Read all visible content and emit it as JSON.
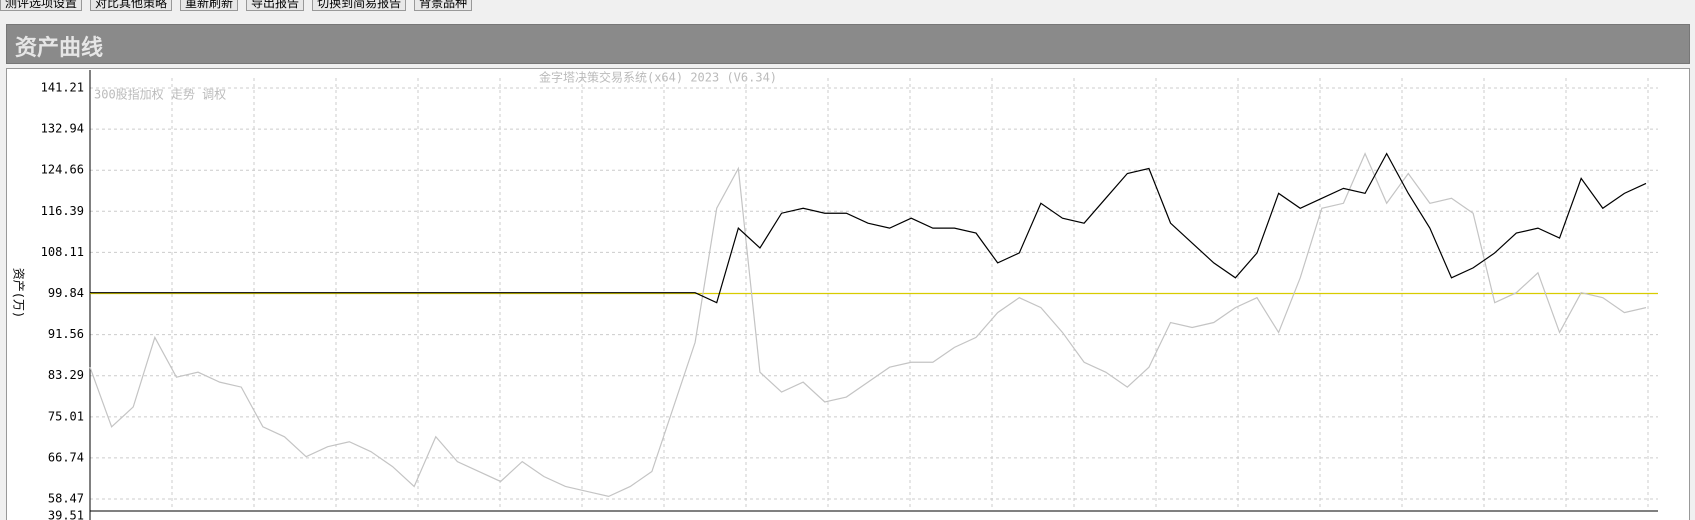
{
  "toolbar": {
    "buttons": [
      "测评选项设置",
      "对比其他策略",
      "重新刷新",
      "导出报告",
      "切换到简易报告",
      "背景品种"
    ]
  },
  "header": {
    "title": "资产曲线"
  },
  "chart_data": {
    "type": "line",
    "title": "金字塔决策交易系统(x64) 2023 (V6.34)",
    "legend_text": "300股指加权 走势 调权",
    "ylabel": "资产(万)",
    "y_min_label": "39.51",
    "ylim": [
      56.46,
      143.22
    ],
    "yticks": [
      141.21,
      132.94,
      124.66,
      116.39,
      108.11,
      99.84,
      91.56,
      83.29,
      75.01,
      66.74,
      58.47
    ],
    "grid": true,
    "reference_line": {
      "value": 99.84,
      "color": "#d8cc00"
    },
    "categories": [
      null,
      null,
      null,
      null,
      null,
      null,
      null,
      null,
      null,
      null,
      null,
      null,
      null,
      null,
      null,
      null,
      null,
      null,
      null,
      null,
      null,
      null,
      null,
      null,
      null,
      null,
      null,
      null,
      null,
      null,
      null,
      null,
      null,
      null,
      null,
      null,
      null,
      null,
      null,
      null,
      null,
      null,
      null,
      null,
      null,
      null,
      null,
      null,
      null,
      null,
      null,
      null,
      null,
      null,
      null,
      null,
      null,
      null,
      null,
      null,
      null,
      null,
      null,
      null,
      null,
      null,
      null,
      null,
      null,
      null,
      null,
      null,
      null
    ],
    "series": [
      {
        "color": "#c4c4c4",
        "values": [
          85,
          73,
          77,
          91,
          83,
          84,
          82,
          81,
          73,
          71,
          67,
          69,
          70,
          68,
          65,
          61,
          71,
          66,
          64,
          62,
          66,
          63,
          61,
          60,
          59,
          61,
          64,
          77,
          90,
          117,
          125,
          84,
          80,
          82,
          78,
          79,
          82,
          85,
          86,
          86,
          89,
          91,
          96,
          99,
          97,
          92,
          86,
          84,
          81,
          85,
          94,
          93,
          94,
          97,
          99,
          92,
          103,
          117,
          118,
          128,
          118,
          124,
          118,
          119,
          116,
          98,
          100,
          104,
          92,
          100,
          99,
          96,
          97
        ]
      },
      {
        "color": "#000000",
        "values": [
          100,
          100,
          100,
          100,
          100,
          100,
          100,
          100,
          100,
          100,
          100,
          100,
          100,
          100,
          100,
          100,
          100,
          100,
          100,
          100,
          100,
          100,
          100,
          100,
          100,
          100,
          100,
          100,
          100,
          98,
          113,
          109,
          116,
          117,
          116,
          116,
          114,
          113,
          115,
          113,
          113,
          112,
          106,
          108,
          118,
          115,
          114,
          119,
          124,
          125,
          114,
          110,
          106,
          103,
          108,
          120,
          117,
          119,
          121,
          120,
          128,
          120,
          113,
          103,
          105,
          108,
          112,
          113,
          111,
          123,
          117,
          120,
          122
        ]
      }
    ]
  }
}
